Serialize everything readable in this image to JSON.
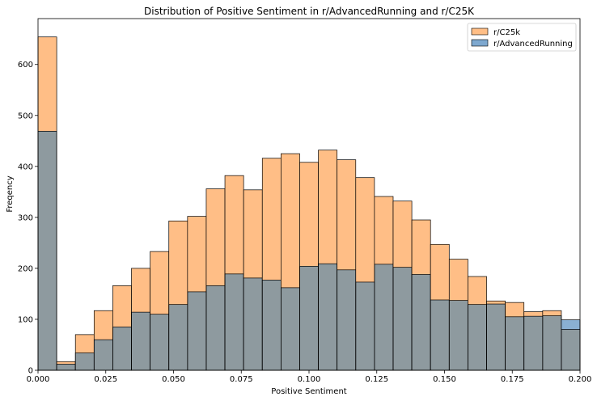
{
  "chart_data": {
    "type": "bar",
    "title": "Distribution of Positive Sentiment in r/AdvancedRunning and r/C25K",
    "xlabel": "Positive Sentiment",
    "ylabel": "Freqency",
    "xlim": [
      0.0,
      0.2
    ],
    "ylim": [
      0,
      690
    ],
    "bin_width": 0.006897,
    "bin_edges_start": 0.0,
    "x_ticks": [
      "0.000",
      "0.025",
      "0.050",
      "0.075",
      "0.100",
      "0.125",
      "0.150",
      "0.175",
      "0.200"
    ],
    "x_tick_values": [
      0.0,
      0.025,
      0.05,
      0.075,
      0.1,
      0.125,
      0.15,
      0.175,
      0.2
    ],
    "y_ticks": [
      0,
      100,
      200,
      300,
      400,
      500,
      600
    ],
    "legend_position": "top-right",
    "grid": false,
    "series": [
      {
        "name": "r/C25k",
        "color": "#ffbe86",
        "values": [
          654,
          17,
          70,
          117,
          166,
          200,
          233,
          293,
          302,
          356,
          382,
          354,
          416,
          425,
          408,
          432,
          413,
          378,
          341,
          332,
          295,
          247,
          218,
          184,
          136,
          133,
          115,
          117,
          80
        ]
      },
      {
        "name": "r/AdvancedRunning",
        "color": "#8ab0d2",
        "values": [
          469,
          12,
          34,
          60,
          85,
          114,
          110,
          129,
          154,
          166,
          189,
          181,
          177,
          162,
          204,
          209,
          197,
          173,
          208,
          202,
          188,
          138,
          137,
          129,
          130,
          105,
          106,
          107,
          99
        ]
      }
    ],
    "overlap_color": "#8e9a9f"
  }
}
